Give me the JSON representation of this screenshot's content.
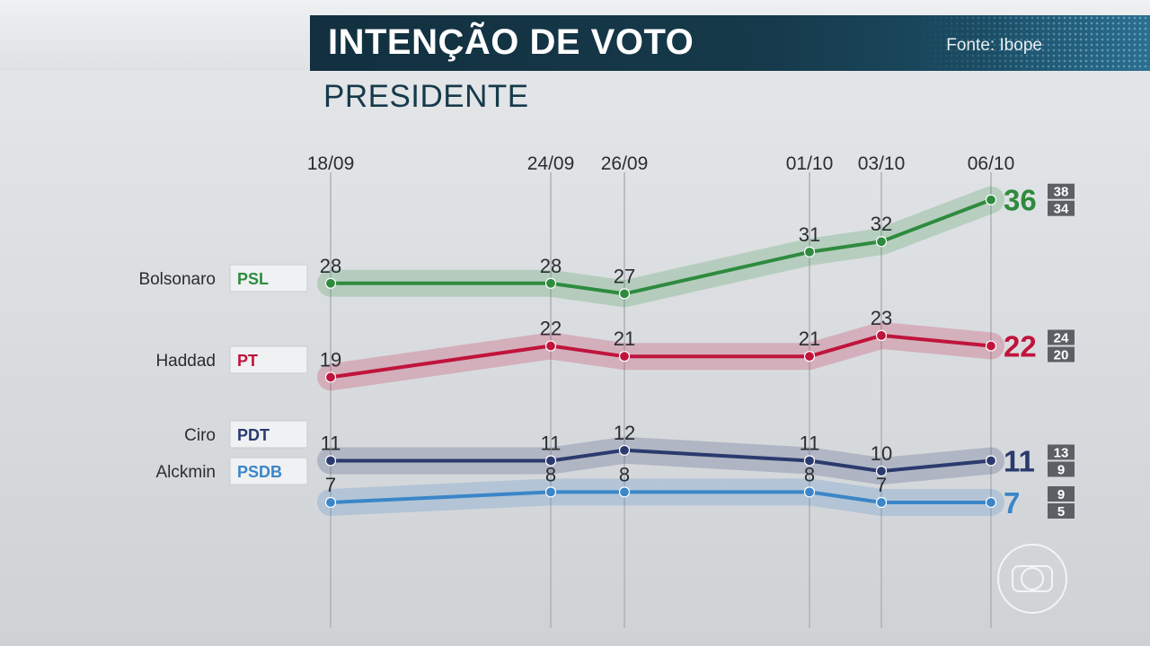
{
  "header": {
    "title": "INTENÇÃO DE VOTO",
    "source": "Fonte: Ibope"
  },
  "subtitle": "PRESIDENTE",
  "colors": {
    "title_bg": "#163a4b",
    "Bolsonaro": "#2e8b3e",
    "Haddad": "#c0143c",
    "Ciro": "#2b3a6e",
    "Alckmin": "#3a86c8"
  },
  "logo_icon": "tv-globo-logo-icon",
  "chart_data": {
    "type": "line",
    "x": [
      "18/09",
      "24/09",
      "26/09",
      "01/10",
      "03/10",
      "06/10"
    ],
    "series": [
      {
        "name": "Bolsonaro",
        "party": "PSL",
        "values": [
          28,
          28,
          27,
          31,
          32,
          36
        ],
        "range": [
          38,
          34
        ],
        "color": "#2e8b3e"
      },
      {
        "name": "Haddad",
        "party": "PT",
        "values": [
          19,
          22,
          21,
          21,
          23,
          22
        ],
        "range": [
          24,
          20
        ],
        "color": "#c0143c"
      },
      {
        "name": "Ciro",
        "party": "PDT",
        "values": [
          11,
          11,
          12,
          11,
          10,
          11
        ],
        "range": [
          13,
          9
        ],
        "color": "#2b3a6e"
      },
      {
        "name": "Alckmin",
        "party": "PSDB",
        "values": [
          7,
          8,
          8,
          8,
          7,
          7
        ],
        "range": [
          9,
          5
        ],
        "color": "#3a86c8"
      }
    ],
    "grid": true,
    "legend": "left"
  }
}
